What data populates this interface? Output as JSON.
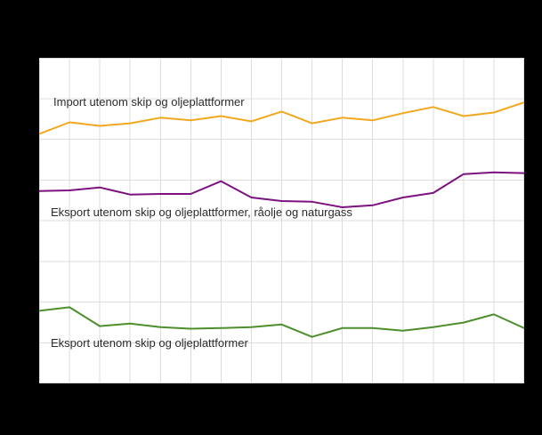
{
  "chart_data": {
    "type": "line",
    "x": [
      0,
      1,
      2,
      3,
      4,
      5,
      6,
      7,
      8,
      9,
      10,
      11,
      12,
      13,
      14,
      15,
      16
    ],
    "x_tick_labels_visible": false,
    "y_tick_labels_visible": false,
    "ylim": [
      0,
      100
    ],
    "note": "Axis tick labels are not visible in the screenshot; series values are estimated relative positions (0-100 of plot height).",
    "series": [
      {
        "id": "import",
        "name": "Import utenom skip og oljeplattformer",
        "color": "#f1a81e",
        "values": [
          76.6,
          80.2,
          79.1,
          79.9,
          81.6,
          80.8,
          82.1,
          80.5,
          83.5,
          79.9,
          81.6,
          80.8,
          83.0,
          84.9,
          82.1,
          83.2,
          86.3
        ]
      },
      {
        "id": "eksport-raolje",
        "name": "Eksport utenom skip og oljeplattformer,  råolje  og naturgass",
        "color": "#7b1280",
        "values": [
          59.1,
          59.3,
          60.2,
          58.0,
          58.2,
          58.2,
          62.1,
          57.1,
          56.0,
          55.8,
          54.1,
          54.7,
          57.1,
          58.5,
          64.3,
          64.8,
          64.6
        ]
      },
      {
        "id": "eksport",
        "name": "Eksport utenom skip og oljeplattformer",
        "color": "#4c8f2c",
        "values": [
          22.3,
          23.4,
          17.6,
          18.4,
          17.3,
          16.8,
          17.0,
          17.3,
          18.1,
          14.3,
          17.0,
          17.0,
          16.2,
          17.3,
          18.7,
          21.2,
          17.0
        ]
      }
    ],
    "layout": {
      "grid": true,
      "x_gridlines": 16,
      "y_gridlines": 8,
      "gridline_color": "#dcdcdc",
      "plot_background": "#ffffff",
      "page_background": "#000000",
      "legend": "labels-inside-plot"
    }
  }
}
